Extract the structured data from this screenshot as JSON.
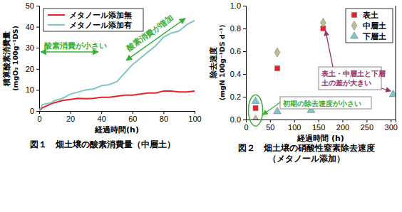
{
  "chart_data": [
    {
      "type": "line",
      "title": "図１　畑土壌の酸素消費量（中層土）",
      "x_label": "経過時間(h)",
      "y_label": [
        "積算酸素消費量",
        "(mgO₂ 100g⁻¹DS)"
      ],
      "x": [
        0,
        2,
        5,
        8,
        10,
        15,
        20,
        25,
        30,
        35,
        40,
        45,
        50,
        55,
        60,
        65,
        70,
        75,
        80,
        85,
        90,
        95,
        100
      ],
      "series": [
        {
          "name": "メタノール添加無",
          "color": "#e8202a",
          "values": [
            0,
            1.5,
            2.5,
            3.5,
            4,
            5,
            5.5,
            6,
            5.8,
            6,
            6.5,
            6.5,
            7,
            7.5,
            7.5,
            8,
            8.5,
            8.5,
            9.5,
            9.5,
            9,
            9,
            9.5
          ]
        },
        {
          "name": "メタノール添加有",
          "color": "#7fc6c6",
          "values": [
            0,
            3,
            3.5,
            4,
            5,
            6,
            8,
            9,
            10,
            10.5,
            12,
            12.5,
            14,
            18,
            22,
            25,
            28,
            31,
            35,
            37,
            38,
            41,
            43
          ]
        }
      ],
      "xlim": [
        0,
        100
      ],
      "xticks": [
        0,
        20,
        40,
        60,
        80,
        100
      ],
      "ylim": [
        0,
        50
      ],
      "yticks": [
        0,
        10,
        20,
        30,
        40,
        50
      ],
      "grid": false,
      "legend": "upper left",
      "annotations": [
        {
          "text": "酸素消費が小さい"
        },
        {
          "text": "酸素消費が増加"
        }
      ]
    },
    {
      "type": "scatter",
      "title": "図２　畑土壌の硝酸性窒素除去速度",
      "subtitle": "（メタノール添加）",
      "x_label": "経過時間 (h)",
      "y_label": [
        "除去速度",
        "(mgN 100g⁻¹DS d⁻¹)"
      ],
      "series": [
        {
          "name": "表土",
          "color": "#e8202a",
          "marker": "square",
          "x": [
            20,
            65,
            160
          ],
          "values": [
            0.1,
            0.45,
            0.8
          ]
        },
        {
          "name": "中層土",
          "color": "#c2bd8e",
          "marker": "diamond",
          "x": [
            20,
            65,
            160
          ],
          "values": [
            0.0,
            0.59,
            0.85
          ]
        },
        {
          "name": "下層土",
          "color": "#7fc6c6",
          "marker": "triangle",
          "x": [
            20,
            65,
            135,
            305
          ],
          "values": [
            0.16,
            0.07,
            0.08,
            0.22
          ]
        }
      ],
      "xlim": [
        0,
        310
      ],
      "xticks": [
        0,
        50,
        100,
        150,
        200,
        250,
        300
      ],
      "ylim": [
        0,
        1
      ],
      "yticks": [
        {
          "value": 0,
          "label": "0.0"
        },
        0.2,
        0.4,
        0.6,
        0.8,
        {
          "value": 1,
          "label": "1.0"
        }
      ],
      "grid": false,
      "legend": "upper right",
      "annotations": [
        {
          "text": [
            "表土・中層土と下層",
            "土の差が大きい"
          ]
        },
        {
          "text": "初期の除去速度が小さい"
        }
      ]
    }
  ]
}
